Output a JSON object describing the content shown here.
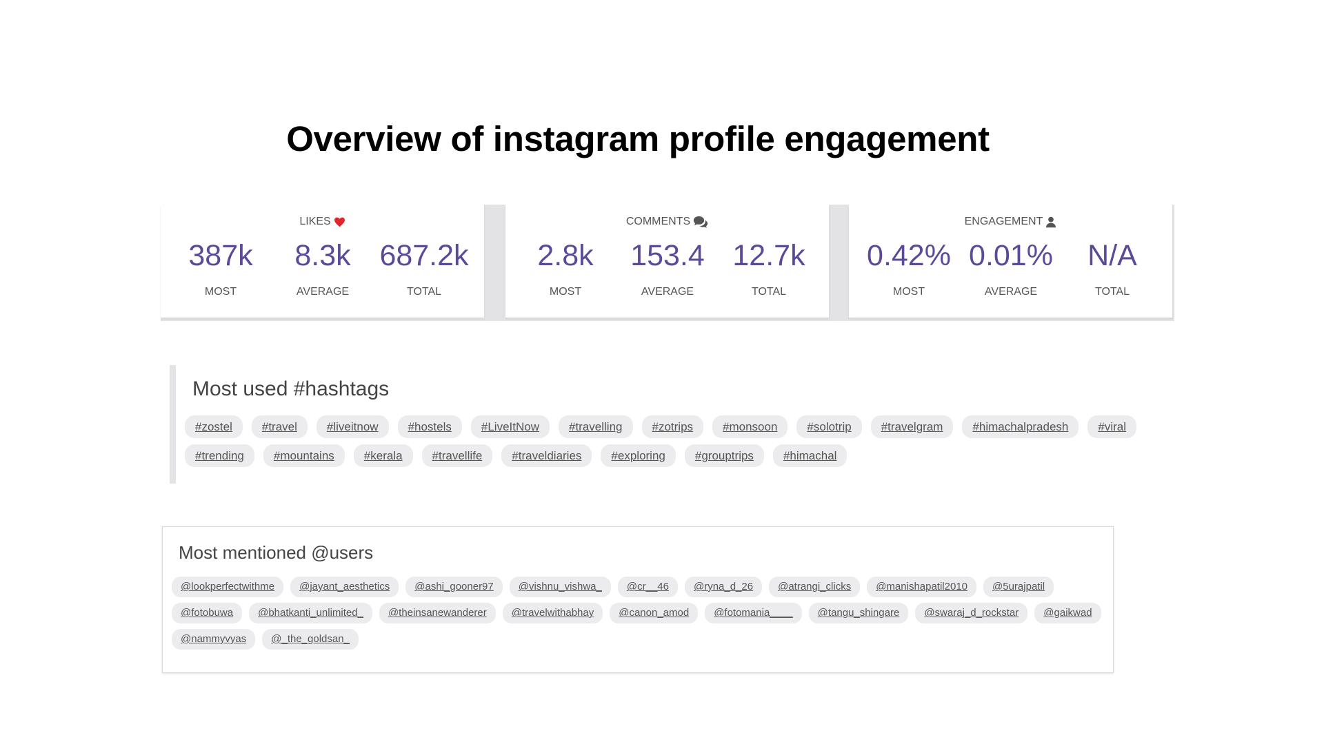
{
  "title": "Overview of instagram profile engagement",
  "colors": {
    "accent": "#5c4a98",
    "heart": "#e0252b",
    "pill": "#ececee"
  },
  "stats": [
    {
      "header": "LIKES",
      "icon": "heart-icon",
      "values": [
        {
          "value": "387k",
          "label": "MOST"
        },
        {
          "value": "8.3k",
          "label": "AVERAGE"
        },
        {
          "value": "687.2k",
          "label": "TOTAL"
        }
      ]
    },
    {
      "header": "COMMENTS",
      "icon": "comments-icon",
      "values": [
        {
          "value": "2.8k",
          "label": "MOST"
        },
        {
          "value": "153.4",
          "label": "AVERAGE"
        },
        {
          "value": "12.7k",
          "label": "TOTAL"
        }
      ]
    },
    {
      "header": "ENGAGEMENT",
      "icon": "user-icon",
      "values": [
        {
          "value": "0.42%",
          "label": "MOST"
        },
        {
          "value": "0.01%",
          "label": "AVERAGE"
        },
        {
          "value": "N/A",
          "label": "TOTAL"
        }
      ]
    }
  ],
  "hashtags": {
    "title": "Most used #hashtags",
    "items": [
      "#zostel",
      "#travel",
      "#liveitnow",
      "#hostels",
      "#LiveItNow",
      "#travelling",
      "#zotrips",
      "#monsoon",
      "#solotrip",
      "#travelgram",
      "#himachalpradesh",
      "#viral",
      "#trending",
      "#mountains",
      "#kerala",
      "#travellife",
      "#traveldiaries",
      "#exploring",
      "#grouptrips",
      "#himachal"
    ]
  },
  "mentions": {
    "title": "Most mentioned @users",
    "items": [
      "@lookperfectwithme",
      "@jayant_aesthetics",
      "@ashi_gooner97",
      "@vishnu_vishwa_",
      "@cr__46",
      "@ryna_d_26",
      "@atrangi_clicks",
      "@manishapatil2010",
      "@5urajpatil",
      "@fotobuwa",
      "@bhatkanti_unlimited_",
      "@theinsanewanderer",
      "@travelwithabhay",
      "@canon_amod",
      "@fotomania____",
      "@tangu_shingare",
      "@swaraj_d_rockstar",
      "@gaikwad",
      "@nammyvyas",
      "@_the_goldsan_"
    ]
  }
}
